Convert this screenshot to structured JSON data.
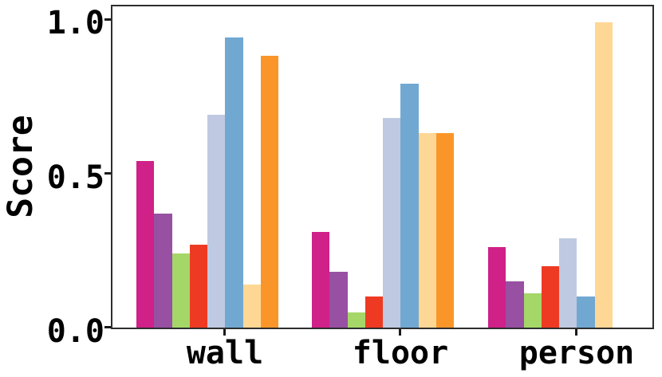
{
  "chart_data": {
    "type": "bar",
    "title": "",
    "xlabel": "",
    "ylabel": "Score",
    "ylim": [
      0.0,
      1.05
    ],
    "yticks": [
      0.0,
      0.5,
      1.0
    ],
    "grid": false,
    "legend": "none",
    "categories": [
      "wall",
      "floor",
      "person"
    ],
    "series": [
      {
        "name": "magenta",
        "color": "#cf2188",
        "values": [
          0.54,
          0.31,
          0.26
        ]
      },
      {
        "name": "purple",
        "color": "#9750a2",
        "values": [
          0.37,
          0.18,
          0.15
        ]
      },
      {
        "name": "green",
        "color": "#a5d768",
        "values": [
          0.24,
          0.05,
          0.11
        ]
      },
      {
        "name": "red",
        "color": "#ee3a23",
        "values": [
          0.27,
          0.1,
          0.2
        ]
      },
      {
        "name": "light-blue",
        "color": "#bfc9e1",
        "values": [
          0.69,
          0.68,
          0.29
        ]
      },
      {
        "name": "blue",
        "color": "#71a8d2",
        "values": [
          0.94,
          0.79,
          0.1
        ]
      },
      {
        "name": "light-orange",
        "color": "#ffd795",
        "values": [
          0.14,
          0.63,
          0.99
        ]
      },
      {
        "name": "orange",
        "color": "#fa9629",
        "values": [
          0.88,
          0.63,
          0.0
        ]
      }
    ]
  },
  "axis": {
    "y_tick_labels": [
      "0.0",
      "0.5",
      "1.0"
    ],
    "spine_color": "#2e2e2e"
  }
}
